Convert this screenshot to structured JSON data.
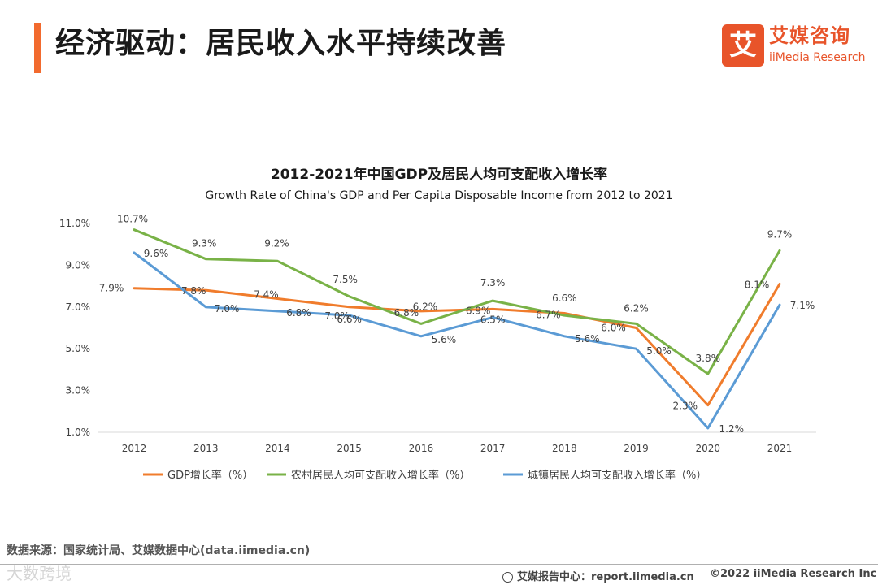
{
  "header": {
    "title": "经济驱动：居民收入水平持续改善"
  },
  "logo": {
    "cn": "艾媒咨询",
    "en": "iiMedia Research",
    "mark": "艾"
  },
  "chart_data": {
    "type": "line",
    "title": "2012-2021年中国GDP及居民人均可支配收入增长率",
    "subtitle": "Growth Rate of China's GDP and Per Capita Disposable Income from 2012 to 2021",
    "x": [
      "2012",
      "2013",
      "2014",
      "2015",
      "2016",
      "2017",
      "2018",
      "2019",
      "2020",
      "2021"
    ],
    "ylim": [
      1.0,
      11.0
    ],
    "yticks": [
      "1.0%",
      "3.0%",
      "5.0%",
      "7.0%",
      "9.0%",
      "11.0%"
    ],
    "ytick_values": [
      1.0,
      3.0,
      5.0,
      7.0,
      9.0,
      11.0
    ],
    "series": [
      {
        "name": "GDP增长率（%）",
        "color": "#f07c2c",
        "values": [
          7.9,
          7.8,
          7.4,
          7.0,
          6.8,
          6.9,
          6.7,
          6.0,
          2.3,
          8.1
        ]
      },
      {
        "name": "农村居民人均可支配收入增长率（%）",
        "color": "#79b247",
        "values": [
          10.7,
          9.3,
          9.2,
          7.5,
          6.2,
          7.3,
          6.6,
          6.2,
          3.8,
          9.7
        ]
      },
      {
        "name": "城镇居民人均可支配收入增长率（%）",
        "color": "#5b9bd5",
        "values": [
          9.6,
          7.0,
          6.8,
          6.6,
          5.6,
          6.5,
          5.6,
          5.0,
          1.2,
          7.1
        ]
      }
    ],
    "legend": "bottom"
  },
  "footer": {
    "source": "数据来源：国家统计局、艾媒数据中心(data.iimedia.cn)",
    "watermark": "大数跨境",
    "site": "艾媒报告中心：report.iimedia.cn",
    "copyright": "©2022  iiMedia Research  Inc"
  }
}
